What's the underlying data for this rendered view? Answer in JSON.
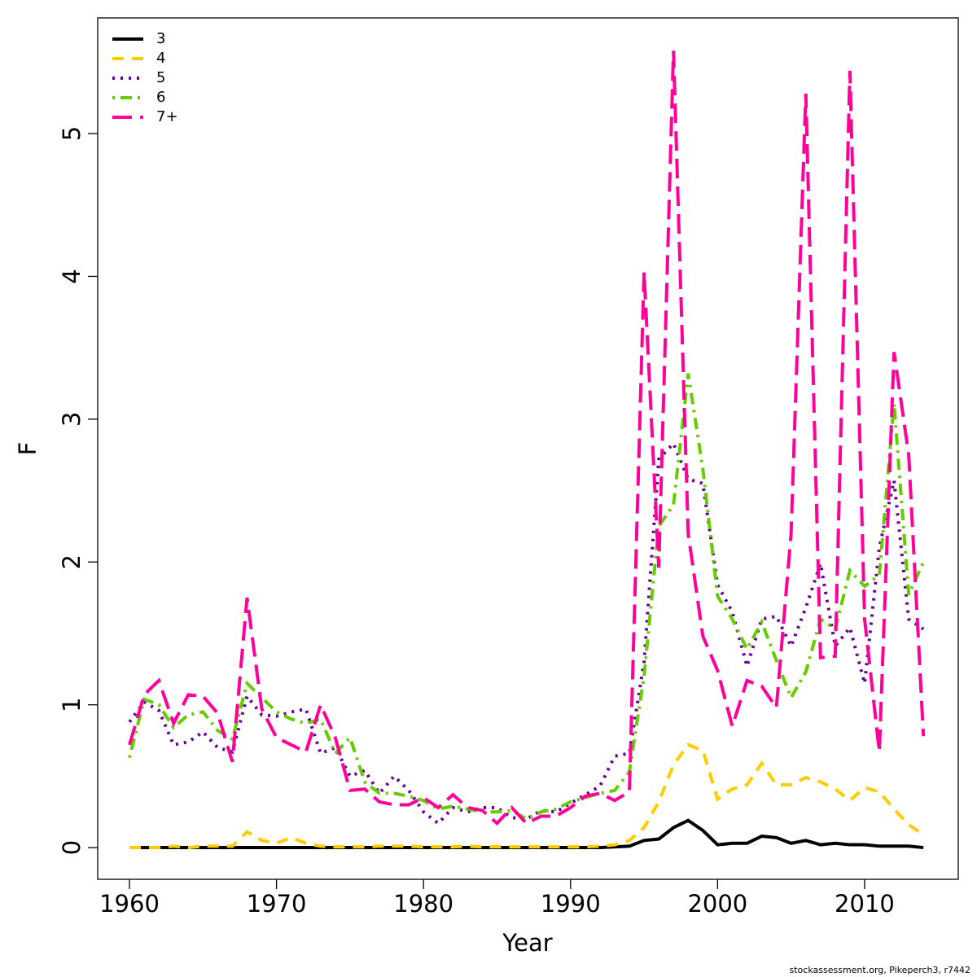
{
  "chart_data": {
    "type": "line",
    "xlabel": "Year",
    "ylabel": "F",
    "source": "stockassessment.org, Pikeperch3, r7442",
    "x": [
      1960,
      1961,
      1962,
      1963,
      1964,
      1965,
      1966,
      1967,
      1968,
      1969,
      1970,
      1971,
      1972,
      1973,
      1974,
      1975,
      1976,
      1977,
      1978,
      1979,
      1980,
      1981,
      1982,
      1983,
      1984,
      1985,
      1986,
      1987,
      1988,
      1989,
      1990,
      1991,
      1992,
      1993,
      1994,
      1995,
      1996,
      1997,
      1998,
      1999,
      2000,
      2001,
      2002,
      2003,
      2004,
      2005,
      2006,
      2007,
      2008,
      2009,
      2010,
      2011,
      2012,
      2013,
      2014
    ],
    "xlim": [
      1957.84,
      2016.37
    ],
    "xticks": [
      1960,
      1970,
      1980,
      1990,
      2000,
      2010
    ],
    "ylim": [
      -0.222,
      5.81
    ],
    "yticks": [
      0,
      1,
      2,
      3,
      4,
      5
    ],
    "grid": false,
    "legend": "top-left",
    "series": [
      {
        "name": "3",
        "color": "#000000",
        "linestyle": "solid",
        "values": [
          0,
          0,
          0,
          0,
          0,
          0,
          0,
          0,
          0,
          0,
          0,
          0,
          0,
          0,
          0,
          0,
          0,
          0,
          0,
          0,
          0,
          0,
          0,
          0,
          0,
          0,
          0,
          0,
          0,
          0,
          0,
          0,
          0,
          0.005,
          0.01,
          0.05,
          0.06,
          0.14,
          0.19,
          0.12,
          0.02,
          0.03,
          0.03,
          0.08,
          0.07,
          0.03,
          0.05,
          0.02,
          0.03,
          0.02,
          0.02,
          0.01,
          0.01,
          0.01,
          0
        ]
      },
      {
        "name": "4",
        "color": "#ffcc00",
        "linestyle": "dashed",
        "values": [
          0,
          0,
          0,
          0.01,
          0,
          0.01,
          0.01,
          0.01,
          0.11,
          0.05,
          0.03,
          0.07,
          0.03,
          0.01,
          0.005,
          0.005,
          0.005,
          0.01,
          0.01,
          0.01,
          0.005,
          0.005,
          0.005,
          0.01,
          0.005,
          0.005,
          0.005,
          0.005,
          0.005,
          0.005,
          0.005,
          0.005,
          0.01,
          0.02,
          0.05,
          0.14,
          0.32,
          0.58,
          0.72,
          0.68,
          0.34,
          0.41,
          0.44,
          0.59,
          0.44,
          0.44,
          0.49,
          0.46,
          0.41,
          0.33,
          0.42,
          0.39,
          0.27,
          0.16,
          0.09
        ]
      },
      {
        "name": "5",
        "color": "#660099",
        "linestyle": "dotted",
        "values": [
          0.88,
          1.02,
          0.96,
          0.72,
          0.74,
          0.81,
          0.7,
          0.67,
          1.06,
          0.93,
          0.92,
          0.95,
          0.97,
          0.66,
          0.7,
          0.5,
          0.54,
          0.38,
          0.5,
          0.4,
          0.25,
          0.17,
          0.28,
          0.25,
          0.28,
          0.28,
          0.21,
          0.2,
          0.26,
          0.25,
          0.31,
          0.37,
          0.43,
          0.64,
          0.66,
          1.3,
          2.72,
          2.83,
          2.58,
          2.55,
          1.84,
          1.65,
          1.27,
          1.6,
          1.62,
          1.41,
          1.68,
          1.99,
          1.41,
          1.54,
          1.15,
          2.1,
          2.57,
          1.6,
          1.53
        ]
      },
      {
        "name": "6",
        "color": "#66cc00",
        "linestyle": "dotdash",
        "values": [
          0.63,
          1.04,
          1,
          0.84,
          0.93,
          0.95,
          0.82,
          0.76,
          1.15,
          1.05,
          0.95,
          0.9,
          0.87,
          0.9,
          0.66,
          0.77,
          0.46,
          0.38,
          0.38,
          0.36,
          0.33,
          0.27,
          0.29,
          0.27,
          0.25,
          0.25,
          0.26,
          0.2,
          0.25,
          0.27,
          0.32,
          0.35,
          0.38,
          0.4,
          0.53,
          1.2,
          2.25,
          2.4,
          3.32,
          2.65,
          1.76,
          1.6,
          1.39,
          1.58,
          1.31,
          1.05,
          1.23,
          1.6,
          1.53,
          1.94,
          1.83,
          1.91,
          3.11,
          1.77,
          2.0
        ]
      },
      {
        "name": "7+",
        "color": "#ff0099",
        "linestyle": "longdash",
        "values": [
          0.72,
          1.07,
          1.17,
          0.87,
          1.07,
          1.06,
          0.94,
          0.6,
          1.75,
          0.97,
          0.77,
          0.72,
          0.67,
          1.0,
          0.77,
          0.4,
          0.41,
          0.32,
          0.3,
          0.3,
          0.35,
          0.28,
          0.37,
          0.28,
          0.26,
          0.17,
          0.28,
          0.17,
          0.22,
          0.22,
          0.28,
          0.36,
          0.38,
          0.33,
          0.39,
          4.03,
          1.96,
          5.58,
          2.2,
          1.48,
          1.24,
          0.85,
          1.17,
          1.13,
          0.98,
          2.2,
          5.28,
          1.33,
          1.34,
          5.44,
          1.6,
          0.67,
          3.47,
          2.75,
          0.78
        ]
      }
    ]
  }
}
